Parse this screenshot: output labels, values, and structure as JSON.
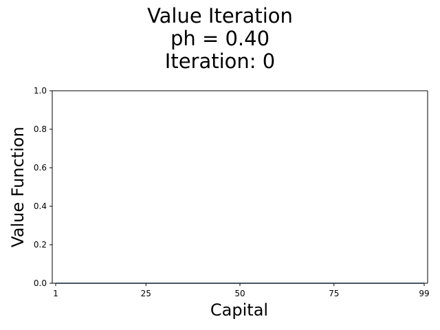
{
  "chart_data": {
    "type": "line",
    "title_lines": [
      "Value Iteration",
      "ph = 0.40",
      "Iteration: 0"
    ],
    "xlabel": "Capital",
    "ylabel": "Value Function",
    "xlim": [
      1,
      99
    ],
    "ylim": [
      0,
      1
    ],
    "xticks": [
      1,
      25,
      50,
      75,
      99
    ],
    "yticks": [
      0.0,
      0.2,
      0.4,
      0.6,
      0.8,
      1.0
    ],
    "ytick_labels": [
      "0.0",
      "0.2",
      "0.4",
      "0.6",
      "0.8",
      "1.0"
    ],
    "grid": false,
    "series": [
      {
        "color": "#1f4e9a",
        "x_start": 1,
        "x_end": 99,
        "value": 0
      }
    ]
  }
}
